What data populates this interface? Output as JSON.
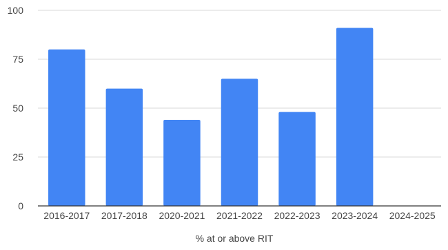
{
  "chart_data": {
    "type": "bar",
    "categories": [
      "2016-2017",
      "2017-2018",
      "2020-2021",
      "2021-2022",
      "2022-2023",
      "2023-2024",
      "2024-2025"
    ],
    "values": [
      80,
      60,
      44,
      65,
      48,
      91,
      0
    ],
    "title": "",
    "xlabel": "% at or above RIT",
    "ylabel": "",
    "ylim": [
      0,
      100
    ],
    "yticks": [
      0,
      25,
      50,
      75,
      100
    ],
    "grid": true,
    "legend": "none",
    "colors": {
      "bar": "#4285f4",
      "grid": "#d9d9d9",
      "axis": "#333333",
      "text": "#444444"
    }
  }
}
